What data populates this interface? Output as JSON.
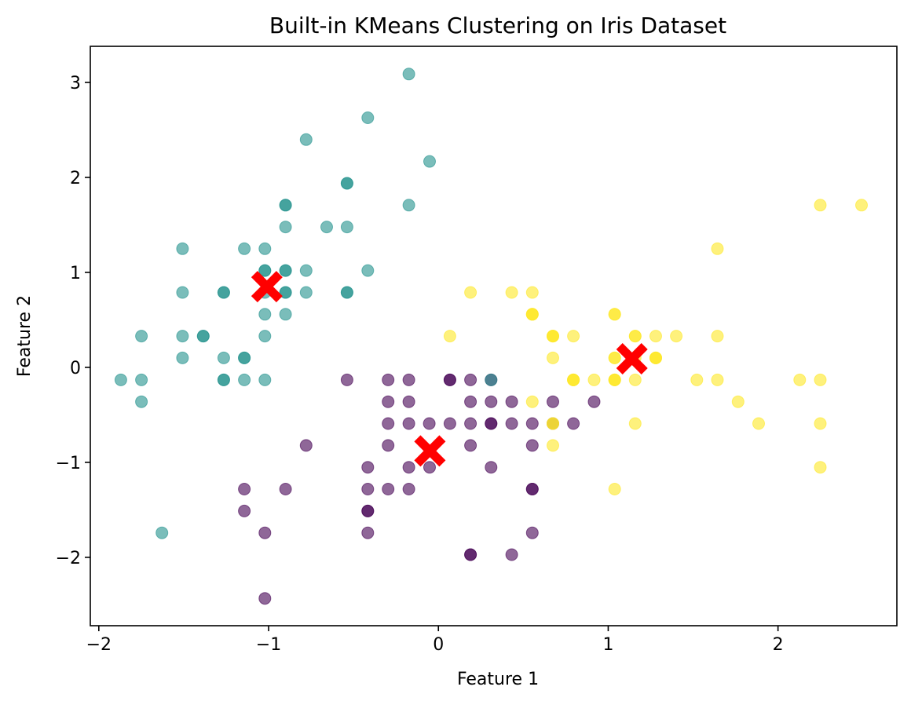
{
  "chart_data": {
    "type": "scatter",
    "title": "Built-in KMeans Clustering on Iris Dataset",
    "xlabel": "Feature 1",
    "ylabel": "Feature 2",
    "xlim": [
      -2.05,
      2.7
    ],
    "ylim": [
      -2.72,
      3.38
    ],
    "xticks": [
      -2,
      -1,
      0,
      1,
      2
    ],
    "yticks": [
      -2,
      -1,
      0,
      1,
      2,
      3
    ],
    "xtick_labels": [
      "−2",
      "−1",
      "0",
      "1",
      "2"
    ],
    "ytick_labels": [
      "−2",
      "−1",
      "0",
      "1",
      "2",
      "3"
    ],
    "grid": false,
    "legend": "none",
    "point_alpha": 0.6,
    "cluster_colors": [
      "#440154",
      "#21918c",
      "#fde725"
    ],
    "centroid_color": "#ff0000",
    "centroid_marker": "X",
    "series": [
      {
        "values": [
          [
            -0.538,
            -0.132
          ],
          [
            -0.296,
            -0.132
          ],
          [
            -0.296,
            -0.362
          ],
          [
            -0.296,
            -0.592
          ],
          [
            -0.296,
            -0.822
          ],
          [
            -0.296,
            -1.282
          ],
          [
            -0.174,
            -0.132
          ],
          [
            -0.174,
            -0.362
          ],
          [
            -0.174,
            -0.592
          ],
          [
            -0.174,
            -1.052
          ],
          [
            -0.174,
            -1.282
          ],
          [
            -0.054,
            -0.592
          ],
          [
            0.068,
            -0.132
          ],
          [
            0.068,
            -0.132
          ],
          [
            0.189,
            -0.132
          ],
          [
            0.189,
            -0.362
          ],
          [
            0.189,
            -0.592
          ],
          [
            0.189,
            -0.822
          ],
          [
            0.31,
            -0.132
          ],
          [
            0.31,
            -0.362
          ],
          [
            0.31,
            -0.592
          ],
          [
            0.31,
            -0.592
          ],
          [
            0.31,
            -1.052
          ],
          [
            0.432,
            -0.362
          ],
          [
            0.432,
            -0.592
          ],
          [
            0.553,
            -0.592
          ],
          [
            0.553,
            -0.822
          ],
          [
            0.553,
            -1.282
          ],
          [
            0.553,
            -1.282
          ],
          [
            0.553,
            -1.742
          ],
          [
            0.674,
            -0.362
          ],
          [
            0.674,
            -0.592
          ],
          [
            0.795,
            -0.592
          ],
          [
            0.917,
            -0.362
          ],
          [
            -0.416,
            -1.052
          ],
          [
            -0.416,
            -1.282
          ],
          [
            -0.416,
            -1.512
          ],
          [
            -0.416,
            -1.512
          ],
          [
            -0.416,
            -1.742
          ],
          [
            -0.052,
            -1.052
          ],
          [
            -0.779,
            -0.822
          ],
          [
            -1.143,
            -1.282
          ],
          [
            -1.143,
            -1.512
          ],
          [
            -1.022,
            -1.742
          ],
          [
            -0.9,
            -1.282
          ],
          [
            -1.022,
            -2.432
          ],
          [
            0.189,
            -1.972
          ],
          [
            0.189,
            -1.972
          ],
          [
            0.432,
            -1.972
          ],
          [
            0.068,
            -0.592
          ]
        ]
      },
      {
        "values": [
          [
            -0.174,
            3.088
          ],
          [
            -0.416,
            2.628
          ],
          [
            -0.779,
            2.398
          ],
          [
            -0.052,
            2.168
          ],
          [
            -0.538,
            1.938
          ],
          [
            -0.538,
            1.938
          ],
          [
            -0.174,
            1.708
          ],
          [
            -0.9,
            1.708
          ],
          [
            -0.9,
            1.708
          ],
          [
            -0.9,
            1.478
          ],
          [
            -0.658,
            1.478
          ],
          [
            -0.538,
            1.478
          ],
          [
            -1.507,
            1.249
          ],
          [
            -1.143,
            1.249
          ],
          [
            -1.022,
            1.249
          ],
          [
            -1.022,
            1.019
          ],
          [
            -0.9,
            1.019
          ],
          [
            -0.9,
            1.019
          ],
          [
            -0.779,
            1.019
          ],
          [
            -0.416,
            1.019
          ],
          [
            -1.507,
            0.789
          ],
          [
            -1.264,
            0.789
          ],
          [
            -1.264,
            0.789
          ],
          [
            -1.022,
            0.789
          ],
          [
            -0.9,
            0.789
          ],
          [
            -0.779,
            0.789
          ],
          [
            -0.538,
            0.789
          ],
          [
            -0.538,
            0.789
          ],
          [
            -1.022,
            0.559
          ],
          [
            -0.9,
            0.559
          ],
          [
            -1.749,
            0.329
          ],
          [
            -1.507,
            0.329
          ],
          [
            -1.385,
            0.329
          ],
          [
            -1.385,
            0.329
          ],
          [
            -1.022,
            0.329
          ],
          [
            -1.507,
            0.099
          ],
          [
            -1.264,
            0.099
          ],
          [
            -1.143,
            0.099
          ],
          [
            -1.143,
            0.099
          ],
          [
            -1.87,
            -0.132
          ],
          [
            -1.749,
            -0.132
          ],
          [
            -1.264,
            -0.132
          ],
          [
            -1.264,
            -0.132
          ],
          [
            -1.143,
            -0.132
          ],
          [
            -1.022,
            -0.132
          ],
          [
            -1.749,
            -0.362
          ],
          [
            -1.628,
            -1.742
          ],
          [
            0.31,
            -0.132
          ],
          [
            -1.022,
            1.019
          ],
          [
            -0.9,
            0.789
          ]
        ]
      },
      {
        "values": [
          [
            2.249,
            1.708
          ],
          [
            2.492,
            1.708
          ],
          [
            1.643,
            1.249
          ],
          [
            0.189,
            0.789
          ],
          [
            0.432,
            0.789
          ],
          [
            0.553,
            0.789
          ],
          [
            0.553,
            0.559
          ],
          [
            0.553,
            0.559
          ],
          [
            1.038,
            0.559
          ],
          [
            1.038,
            0.559
          ],
          [
            0.068,
            0.329
          ],
          [
            0.674,
            0.329
          ],
          [
            0.674,
            0.329
          ],
          [
            0.795,
            0.329
          ],
          [
            1.159,
            0.329
          ],
          [
            1.28,
            0.329
          ],
          [
            1.401,
            0.329
          ],
          [
            1.643,
            0.329
          ],
          [
            0.674,
            0.099
          ],
          [
            1.038,
            0.099
          ],
          [
            1.28,
            0.099
          ],
          [
            1.28,
            0.099
          ],
          [
            0.795,
            -0.132
          ],
          [
            0.795,
            -0.132
          ],
          [
            0.917,
            -0.132
          ],
          [
            1.038,
            -0.132
          ],
          [
            1.038,
            -0.132
          ],
          [
            1.159,
            -0.132
          ],
          [
            1.522,
            -0.132
          ],
          [
            1.643,
            -0.132
          ],
          [
            2.128,
            -0.132
          ],
          [
            2.249,
            -0.132
          ],
          [
            0.553,
            -0.362
          ],
          [
            1.765,
            -0.362
          ],
          [
            0.674,
            -0.592
          ],
          [
            0.674,
            -0.592
          ],
          [
            1.159,
            -0.592
          ],
          [
            1.886,
            -0.592
          ],
          [
            2.249,
            -0.592
          ],
          [
            0.674,
            -0.822
          ],
          [
            1.038,
            -1.282
          ],
          [
            2.249,
            -1.052
          ],
          [
            1.038,
            0.099
          ],
          [
            1.159,
            0.099
          ],
          [
            1.28,
            0.099
          ],
          [
            0.553,
            0.559
          ],
          [
            0.674,
            0.329
          ],
          [
            1.038,
            -0.132
          ],
          [
            0.795,
            -0.132
          ],
          [
            1.159,
            0.329
          ]
        ]
      }
    ],
    "centroids": [
      [
        -0.05,
        -0.88
      ],
      [
        -1.01,
        0.85
      ],
      [
        1.14,
        0.09
      ]
    ]
  }
}
